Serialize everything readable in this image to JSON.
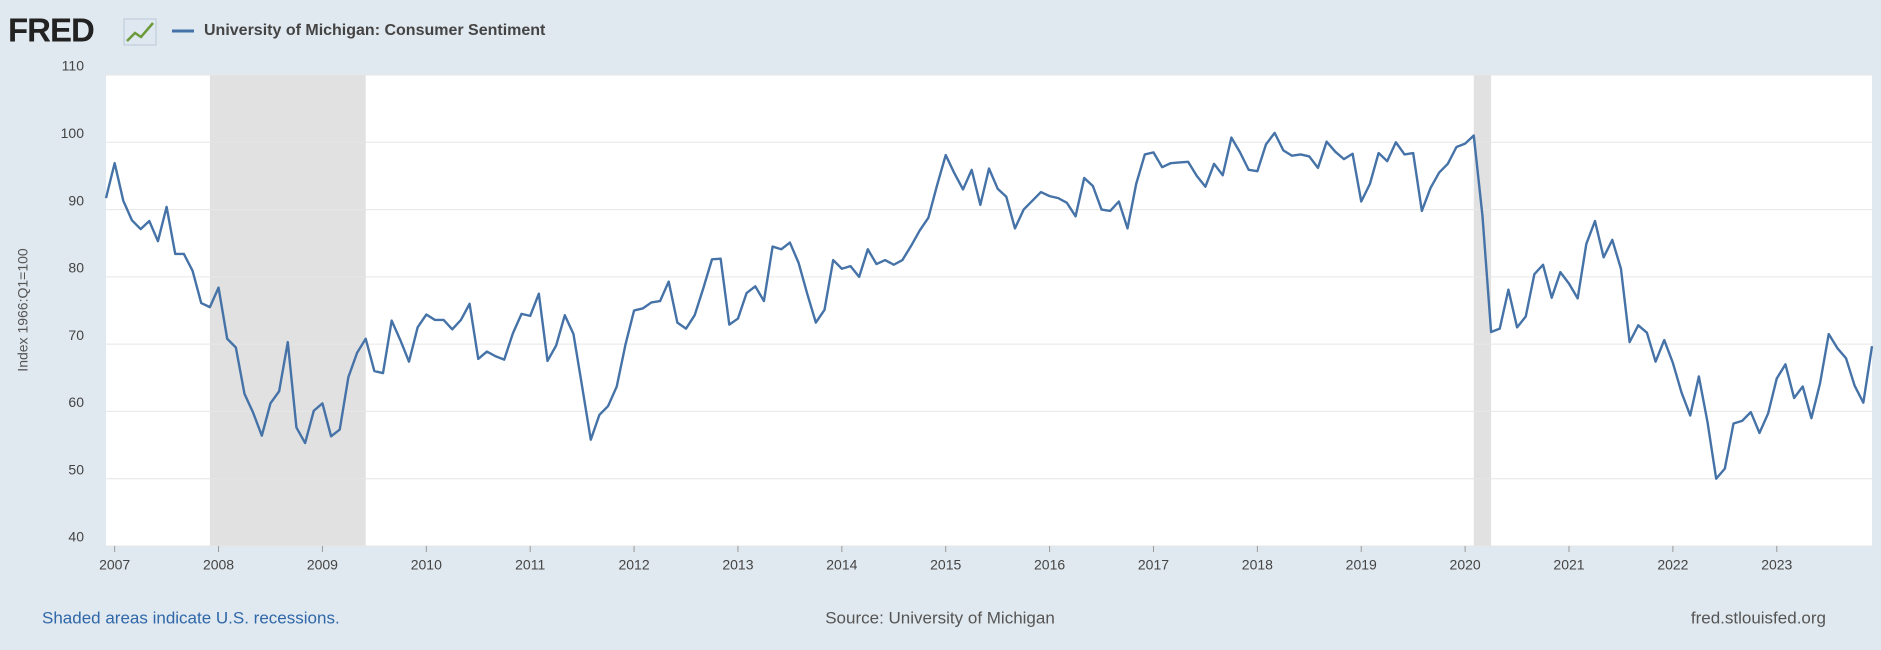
{
  "chart_data": {
    "type": "line",
    "brand": "FRED",
    "source": "Source: University of Michigan",
    "note": "Shaded areas indicate U.S. recessions.",
    "site": "fred.stlouisfed.org",
    "ylabel": "Index 1966:Q1=100",
    "x": [
      "2006-12",
      "2007-01",
      "2007-02",
      "2007-03",
      "2007-04",
      "2007-05",
      "2007-06",
      "2007-07",
      "2007-08",
      "2007-09",
      "2007-10",
      "2007-11",
      "2007-12",
      "2008-01",
      "2008-02",
      "2008-03",
      "2008-04",
      "2008-05",
      "2008-06",
      "2008-07",
      "2008-08",
      "2008-09",
      "2008-10",
      "2008-11",
      "2008-12",
      "2009-01",
      "2009-02",
      "2009-03",
      "2009-04",
      "2009-05",
      "2009-06",
      "2009-07",
      "2009-08",
      "2009-09",
      "2009-10",
      "2009-11",
      "2009-12",
      "2010-01",
      "2010-02",
      "2010-03",
      "2010-04",
      "2010-05",
      "2010-06",
      "2010-07",
      "2010-08",
      "2010-09",
      "2010-10",
      "2010-11",
      "2010-12",
      "2011-01",
      "2011-02",
      "2011-03",
      "2011-04",
      "2011-05",
      "2011-06",
      "2011-07",
      "2011-08",
      "2011-09",
      "2011-10",
      "2011-11",
      "2011-12",
      "2012-01",
      "2012-02",
      "2012-03",
      "2012-04",
      "2012-05",
      "2012-06",
      "2012-07",
      "2012-08",
      "2012-09",
      "2012-10",
      "2012-11",
      "2012-12",
      "2013-01",
      "2013-02",
      "2013-03",
      "2013-04",
      "2013-05",
      "2013-06",
      "2013-07",
      "2013-08",
      "2013-09",
      "2013-10",
      "2013-11",
      "2013-12",
      "2014-01",
      "2014-02",
      "2014-03",
      "2014-04",
      "2014-05",
      "2014-06",
      "2014-07",
      "2014-08",
      "2014-09",
      "2014-10",
      "2014-11",
      "2014-12",
      "2015-01",
      "2015-02",
      "2015-03",
      "2015-04",
      "2015-05",
      "2015-06",
      "2015-07",
      "2015-08",
      "2015-09",
      "2015-10",
      "2015-11",
      "2015-12",
      "2016-01",
      "2016-02",
      "2016-03",
      "2016-04",
      "2016-05",
      "2016-06",
      "2016-07",
      "2016-08",
      "2016-09",
      "2016-10",
      "2016-11",
      "2016-12",
      "2017-01",
      "2017-02",
      "2017-03",
      "2017-04",
      "2017-05",
      "2017-06",
      "2017-07",
      "2017-08",
      "2017-09",
      "2017-10",
      "2017-11",
      "2017-12",
      "2018-01",
      "2018-02",
      "2018-03",
      "2018-04",
      "2018-05",
      "2018-06",
      "2018-07",
      "2018-08",
      "2018-09",
      "2018-10",
      "2018-11",
      "2018-12",
      "2019-01",
      "2019-02",
      "2019-03",
      "2019-04",
      "2019-05",
      "2019-06",
      "2019-07",
      "2019-08",
      "2019-09",
      "2019-10",
      "2019-11",
      "2019-12",
      "2020-01",
      "2020-02",
      "2020-03",
      "2020-04",
      "2020-05",
      "2020-06",
      "2020-07",
      "2020-08",
      "2020-09",
      "2020-10",
      "2020-11",
      "2020-12",
      "2021-01",
      "2021-02",
      "2021-03",
      "2021-04",
      "2021-05",
      "2021-06",
      "2021-07",
      "2021-08",
      "2021-09",
      "2021-10",
      "2021-11",
      "2021-12",
      "2022-01",
      "2022-02",
      "2022-03",
      "2022-04",
      "2022-05",
      "2022-06",
      "2022-07",
      "2022-08",
      "2022-09",
      "2022-10",
      "2022-11",
      "2022-12",
      "2023-01",
      "2023-02",
      "2023-03",
      "2023-04",
      "2023-05",
      "2023-06",
      "2023-07",
      "2023-08",
      "2023-09",
      "2023-10",
      "2023-11",
      "2023-12"
    ],
    "series": [
      {
        "name": "University of Michigan: Consumer Sentiment",
        "color": "#4572a7",
        "values": [
          91.7,
          96.9,
          91.3,
          88.4,
          87.1,
          88.3,
          85.3,
          90.4,
          83.4,
          83.4,
          80.9,
          76.1,
          75.5,
          78.4,
          70.8,
          69.5,
          62.6,
          59.8,
          56.4,
          61.2,
          63.0,
          70.3,
          57.6,
          55.3,
          60.1,
          61.2,
          56.3,
          57.3,
          65.1,
          68.7,
          70.8,
          66.0,
          65.7,
          73.5,
          70.6,
          67.4,
          72.5,
          74.4,
          73.6,
          73.6,
          72.2,
          73.6,
          76.0,
          67.8,
          68.9,
          68.2,
          67.7,
          71.6,
          74.5,
          74.2,
          77.5,
          67.5,
          69.8,
          74.3,
          71.5,
          63.7,
          55.8,
          59.5,
          60.8,
          63.7,
          69.9,
          75.0,
          75.3,
          76.2,
          76.4,
          79.3,
          73.2,
          72.3,
          74.3,
          78.3,
          82.6,
          82.7,
          72.9,
          73.8,
          77.6,
          78.6,
          76.4,
          84.5,
          84.1,
          85.1,
          82.1,
          77.5,
          73.2,
          75.1,
          82.5,
          81.2,
          81.6,
          80.0,
          84.1,
          81.9,
          82.5,
          81.8,
          82.5,
          84.6,
          86.9,
          88.8,
          93.6,
          98.1,
          95.4,
          93.0,
          95.9,
          90.7,
          96.1,
          93.1,
          91.9,
          87.2,
          90.0,
          91.3,
          92.6,
          92.0,
          91.7,
          91.0,
          89.0,
          94.7,
          93.5,
          90.0,
          89.8,
          91.2,
          87.2,
          93.8,
          98.2,
          98.5,
          96.3,
          96.9,
          97.0,
          97.1,
          95.0,
          93.4,
          96.8,
          95.1,
          100.7,
          98.5,
          95.9,
          95.7,
          99.7,
          101.4,
          98.8,
          98.0,
          98.2,
          97.9,
          96.2,
          100.1,
          98.6,
          97.5,
          98.3,
          91.2,
          93.8,
          98.4,
          97.2,
          100.0,
          98.2,
          98.4,
          89.8,
          93.2,
          95.5,
          96.8,
          99.3,
          99.8,
          101.0,
          89.1,
          71.8,
          72.3,
          78.1,
          72.5,
          74.1,
          80.4,
          81.8,
          76.9,
          80.7,
          79.0,
          76.8,
          84.9,
          88.3,
          82.9,
          85.5,
          81.2,
          70.3,
          72.8,
          71.7,
          67.4,
          70.6,
          67.2,
          62.8,
          59.4,
          65.2,
          58.4,
          50.0,
          51.5,
          58.2,
          58.6,
          59.9,
          56.8,
          59.7,
          64.9,
          67.0,
          62.0,
          63.7,
          59.0,
          64.2,
          71.5,
          69.4,
          67.9,
          63.8,
          61.3,
          69.7
        ]
      }
    ],
    "recessions": [
      {
        "start": "2007-12",
        "end": "2009-06"
      },
      {
        "start": "2020-02",
        "end": "2020-04"
      }
    ],
    "recession_color": "#e1e1e1",
    "xlim": [
      "2006-12",
      "2023-12"
    ],
    "xticks": [
      2007,
      2008,
      2009,
      2010,
      2011,
      2012,
      2013,
      2014,
      2015,
      2016,
      2017,
      2018,
      2019,
      2020,
      2021,
      2022,
      2023
    ],
    "ylim": [
      40,
      110
    ],
    "yticks": [
      40,
      50,
      60,
      70,
      80,
      90,
      100,
      110
    ],
    "grid": true
  }
}
